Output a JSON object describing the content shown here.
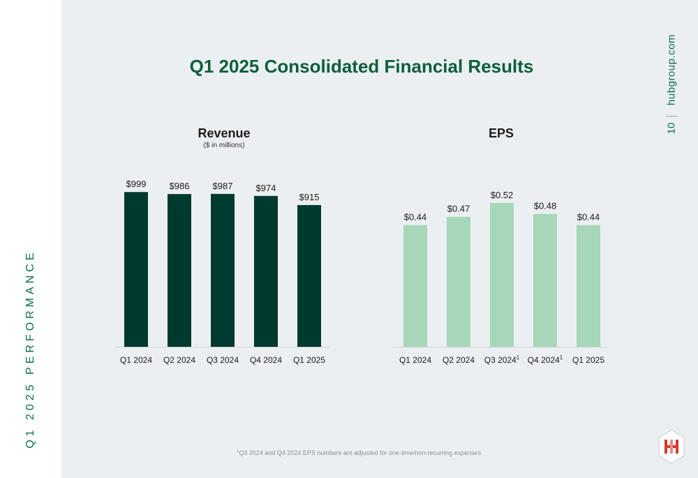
{
  "side_label": "Q1 2025 PERFORMANCE",
  "site_url": "hubgroup.com",
  "page_number": "10",
  "title": "Q1 2025 Consolidated Financial Results",
  "footnote": {
    "marker": "1",
    "text": "Q3 2024 and Q4 2024 EPS numbers are adjusted for one-time/non-recurring expenses"
  },
  "logo_icon": "hub-group-hexagon-logo-icon",
  "colors": {
    "brand_green": "#0b6e45",
    "revenue_bar": "#003a2e",
    "eps_bar": "#a6d7b9",
    "background": "#eceff2"
  },
  "chart_data": [
    {
      "type": "bar",
      "title": "Revenue",
      "subtitle": "($ in millions)",
      "categories": [
        "Q1 2024",
        "Q2 2024",
        "Q3 2024",
        "Q4 2024",
        "Q1 2025"
      ],
      "category_superscripts": [
        "",
        "",
        "",
        "",
        ""
      ],
      "values": [
        999,
        986,
        987,
        974,
        915
      ],
      "data_labels": [
        "$999",
        "$986",
        "$987",
        "$974",
        "$915"
      ],
      "ylim": [
        0,
        1000
      ],
      "color": "#003a2e"
    },
    {
      "type": "bar",
      "title": "EPS",
      "subtitle": "",
      "categories": [
        "Q1 2024",
        "Q2 2024",
        "Q3 2024",
        "Q4 2024",
        "Q1 2025"
      ],
      "category_superscripts": [
        "",
        "",
        "1",
        "1",
        ""
      ],
      "values": [
        0.44,
        0.47,
        0.52,
        0.48,
        0.44
      ],
      "data_labels": [
        "$0.44",
        "$0.47",
        "$0.52",
        "$0.48",
        "$0.44"
      ],
      "ylim": [
        0,
        0.56
      ],
      "color": "#a6d7b9"
    }
  ]
}
